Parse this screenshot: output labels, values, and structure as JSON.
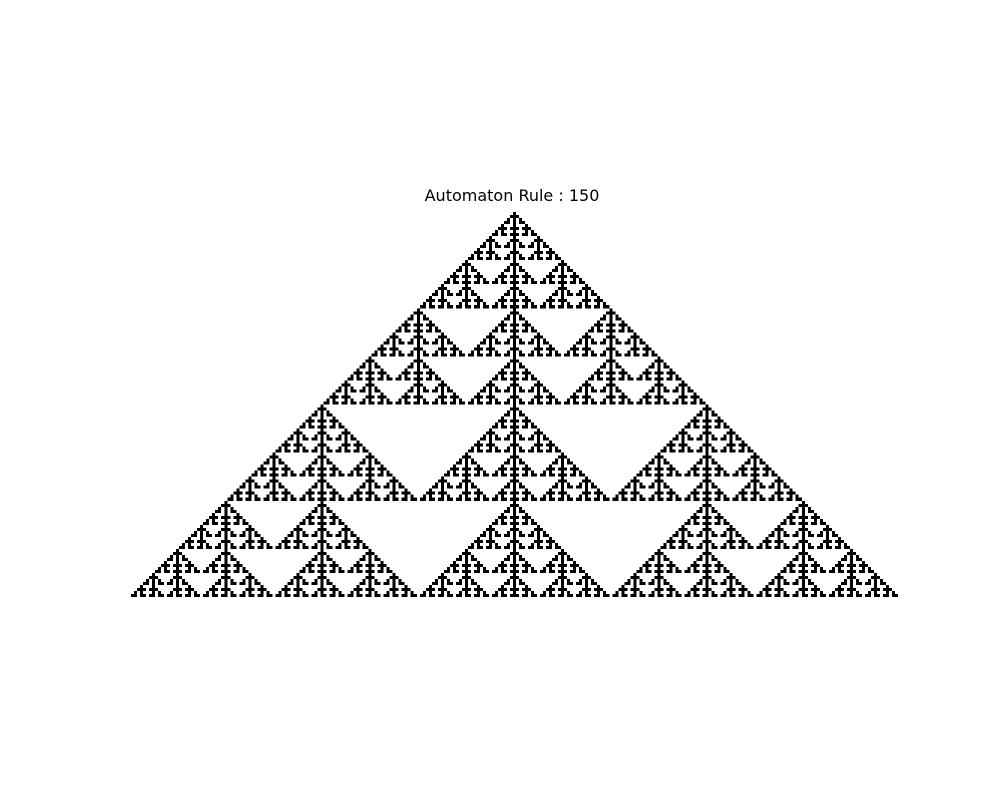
{
  "title": "Automaton Rule : 150",
  "automaton": {
    "rule": 150,
    "boundary": "zero",
    "initial_condition": "single-center-cell"
  },
  "colors": {
    "background": "#ffffff",
    "alive": "#000000",
    "dead": "#ffffff",
    "title_text": "#000000"
  }
}
